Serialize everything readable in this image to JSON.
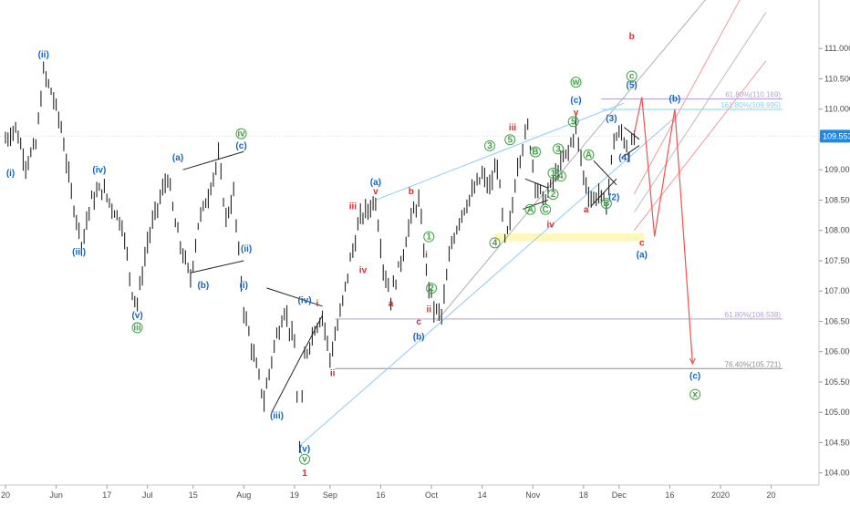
{
  "chart_data": {
    "type": "candlestick",
    "ylim": [
      103.8,
      111.8
    ],
    "price_ticks": [
      "111.000",
      "110.500",
      "110.000",
      "109.500",
      "109.000",
      "108.500",
      "108.000",
      "107.500",
      "107.000",
      "106.500",
      "106.000",
      "105.500",
      "105.000",
      "104.500",
      "104.000"
    ],
    "price_tick_values": [
      111.0,
      110.5,
      110.0,
      109.5,
      109.0,
      108.5,
      108.0,
      107.5,
      107.0,
      106.5,
      106.0,
      105.5,
      105.0,
      104.5,
      104.0
    ],
    "current_price": "109.553",
    "current_price_value": 109.553,
    "time_ticks": [
      "20",
      "Jun",
      "17",
      "Jul",
      "15",
      "Aug",
      "19",
      "Sep",
      "16",
      "Oct",
      "14",
      "Nov",
      "18",
      "Dec",
      "16",
      "2020",
      "20"
    ],
    "time_tick_index": [
      0,
      20,
      40,
      56,
      74,
      94,
      114,
      128,
      148,
      168,
      188,
      208,
      228,
      242,
      262,
      282,
      302
    ],
    "fib_levels": [
      {
        "label": "61.80%(110.169)",
        "value": 110.169,
        "color": "#b39ddb"
      },
      {
        "label": "161.80%(109.995)",
        "value": 109.995,
        "color": "#81d4fa"
      },
      {
        "label": "61.80%(106.538)",
        "value": 106.538,
        "color": "#b39ddb"
      },
      {
        "label": "76.40%(105.721)",
        "value": 105.721,
        "color": "#8e8e8e"
      }
    ],
    "price_path": [
      [
        0,
        109.5
      ],
      [
        4,
        109.7
      ],
      [
        8,
        109.1
      ],
      [
        12,
        109.4
      ],
      [
        15,
        110.6
      ],
      [
        18,
        110.3
      ],
      [
        22,
        109.7
      ],
      [
        26,
        108.6
      ],
      [
        30,
        107.8
      ],
      [
        34,
        108.5
      ],
      [
        38,
        108.7
      ],
      [
        42,
        108.4
      ],
      [
        46,
        108.1
      ],
      [
        50,
        107.0
      ],
      [
        52,
        106.8
      ],
      [
        56,
        107.8
      ],
      [
        60,
        108.4
      ],
      [
        64,
        108.9
      ],
      [
        67,
        108.1
      ],
      [
        70,
        107.6
      ],
      [
        73,
        107.2
      ],
      [
        76,
        108.1
      ],
      [
        80,
        108.6
      ],
      [
        84,
        109.2
      ],
      [
        87,
        108.2
      ],
      [
        90,
        108.6
      ],
      [
        92,
        107.6
      ],
      [
        94,
        106.7
      ],
      [
        98,
        105.9
      ],
      [
        102,
        105.2
      ],
      [
        106,
        106.1
      ],
      [
        110,
        106.7
      ],
      [
        114,
        106.1
      ],
      [
        116,
        104.4
      ],
      [
        118,
        105.9
      ],
      [
        122,
        106.4
      ],
      [
        125,
        106.6
      ],
      [
        128,
        105.9
      ],
      [
        132,
        106.6
      ],
      [
        136,
        107.5
      ],
      [
        140,
        108.2
      ],
      [
        144,
        108.4
      ],
      [
        146,
        108.5
      ],
      [
        149,
        107.4
      ],
      [
        152,
        106.9
      ],
      [
        156,
        107.5
      ],
      [
        160,
        108.2
      ],
      [
        163,
        108.5
      ],
      [
        166,
        107.3
      ],
      [
        169,
        106.7
      ],
      [
        172,
        106.6
      ],
      [
        176,
        107.8
      ],
      [
        180,
        108.3
      ],
      [
        184,
        108.6
      ],
      [
        188,
        108.9
      ],
      [
        191,
        108.7
      ],
      [
        194,
        109.1
      ],
      [
        197,
        107.8
      ],
      [
        199,
        108.1
      ],
      [
        202,
        109.1
      ],
      [
        206,
        109.7
      ],
      [
        209,
        108.8
      ],
      [
        212,
        108.5
      ],
      [
        215,
        108.7
      ],
      [
        219,
        109.1
      ],
      [
        222,
        109.3
      ],
      [
        225,
        109.7
      ],
      [
        228,
        108.9
      ],
      [
        231,
        108.5
      ],
      [
        234,
        108.6
      ],
      [
        237,
        108.4
      ],
      [
        240,
        109.5
      ],
      [
        243,
        109.6
      ],
      [
        246,
        109.3
      ],
      [
        248,
        109.5
      ]
    ],
    "triangles": [
      {
        "points": [
          [
            70,
            109.0
          ],
          [
            94,
            109.3
          ],
          [
            73,
            107.3
          ],
          [
            94,
            107.5
          ]
        ]
      },
      {
        "points": [
          [
            103,
            107.05
          ],
          [
            125,
            106.75
          ],
          [
            105,
            105.0
          ],
          [
            125,
            106.6
          ]
        ]
      },
      {
        "points": [
          [
            205,
            108.85
          ],
          [
            214,
            108.7
          ],
          [
            204,
            108.35
          ],
          [
            214,
            108.5
          ]
        ]
      },
      {
        "points": [
          [
            232,
            109.15
          ],
          [
            241,
            108.75
          ],
          [
            231,
            108.4
          ],
          [
            241,
            108.85
          ]
        ]
      },
      {
        "points": [
          [
            244,
            109.7
          ],
          [
            250,
            109.5
          ],
          [
            243,
            109.2
          ],
          [
            250,
            109.4
          ]
        ]
      }
    ],
    "channels": [
      {
        "from": [
          146,
          108.5
        ],
        "to": [
          244,
          110.1
        ],
        "color": "#90caf9"
      },
      {
        "from": [
          116,
          104.45
        ],
        "to": [
          265,
          109.9
        ],
        "color": "#90caf9"
      },
      {
        "from": [
          170,
          106.5
        ],
        "to": [
          290,
          112.5
        ],
        "color": "#b0b0b0"
      }
    ],
    "projection": [
      {
        "points": [
          [
            248,
            109.6
          ],
          [
            251,
            110.2
          ],
          [
            256,
            107.9
          ],
          [
            264,
            110.0
          ],
          [
            271,
            105.8
          ]
        ],
        "color": "#ef5350"
      }
    ],
    "wave_labels": [
      {
        "t": "(i)",
        "i": 2,
        "y": 108.9,
        "c": "#1565c0"
      },
      {
        "t": "(ii)",
        "i": 15,
        "y": 110.85,
        "c": "#1565c0"
      },
      {
        "t": "(iii)",
        "i": 29,
        "y": 107.6,
        "c": "#1565c0"
      },
      {
        "t": "(iv)",
        "i": 37,
        "y": 108.95,
        "c": "#1565c0"
      },
      {
        "t": "(v)",
        "i": 52,
        "y": 106.55,
        "c": "#1565c0"
      },
      {
        "t": "iii",
        "i": 52,
        "y": 106.35,
        "c": "#43a047",
        "circle": true
      },
      {
        "t": "(a)",
        "i": 68,
        "y": 109.15,
        "c": "#1565c0"
      },
      {
        "t": "(b)",
        "i": 78,
        "y": 107.05,
        "c": "#1565c0"
      },
      {
        "t": "iv",
        "i": 93,
        "y": 109.55,
        "c": "#43a047",
        "circle": true
      },
      {
        "t": "(c)",
        "i": 93,
        "y": 109.35,
        "c": "#1565c0"
      },
      {
        "t": "(ii)",
        "i": 95,
        "y": 107.65,
        "c": "#1565c0"
      },
      {
        "t": "(i)",
        "i": 94,
        "y": 107.05,
        "c": "#1565c0"
      },
      {
        "t": "(iii)",
        "i": 107,
        "y": 104.9,
        "c": "#1565c0"
      },
      {
        "t": "(iv)",
        "i": 118,
        "y": 106.8,
        "c": "#1565c0"
      },
      {
        "t": "(v)",
        "i": 118,
        "y": 104.35,
        "c": "#1565c0"
      },
      {
        "t": "v",
        "i": 118,
        "y": 104.18,
        "c": "#43a047",
        "circle": true
      },
      {
        "t": "1",
        "i": 118,
        "y": 103.95,
        "c": "#d32f2f"
      },
      {
        "t": "i",
        "i": 123,
        "y": 106.75,
        "c": "#d32f2f"
      },
      {
        "t": "ii",
        "i": 129,
        "y": 105.6,
        "c": "#d32f2f"
      },
      {
        "t": "iii",
        "i": 137,
        "y": 108.35,
        "c": "#d32f2f"
      },
      {
        "t": "iv",
        "i": 141,
        "y": 107.3,
        "c": "#d32f2f"
      },
      {
        "t": "v",
        "i": 146,
        "y": 108.6,
        "c": "#d32f2f"
      },
      {
        "t": "(a)",
        "i": 146,
        "y": 108.75,
        "c": "#1565c0"
      },
      {
        "t": "a",
        "i": 152,
        "y": 106.75,
        "c": "#d32f2f"
      },
      {
        "t": "b",
        "i": 160,
        "y": 108.6,
        "c": "#d32f2f"
      },
      {
        "t": "i",
        "i": 166,
        "y": 107.55,
        "c": "#d32f2f"
      },
      {
        "t": "c",
        "i": 163,
        "y": 106.45,
        "c": "#d32f2f"
      },
      {
        "t": "(b)",
        "i": 163,
        "y": 106.2,
        "c": "#1565c0"
      },
      {
        "t": "ii",
        "i": 167,
        "y": 106.65,
        "c": "#d32f2f"
      },
      {
        "t": "iii",
        "i": 200,
        "y": 109.65,
        "c": "#d32f2f"
      },
      {
        "t": "iv",
        "i": 215,
        "y": 108.05,
        "c": "#d32f2f"
      },
      {
        "t": "v",
        "i": 225,
        "y": 109.9,
        "c": "#d32f2f"
      },
      {
        "t": "(c)",
        "i": 225,
        "y": 110.1,
        "c": "#1565c0"
      },
      {
        "t": "w",
        "i": 225,
        "y": 110.4,
        "c": "#43a047",
        "circle": true
      },
      {
        "t": "a",
        "i": 229,
        "y": 108.3,
        "c": "#d32f2f"
      },
      {
        "t": "b",
        "i": 247,
        "y": 111.15,
        "c": "#d32f2f"
      },
      {
        "t": "c",
        "i": 247,
        "y": 110.5,
        "c": "#43a047",
        "circle": true
      },
      {
        "t": "(5)",
        "i": 247,
        "y": 110.35,
        "c": "#1565c0"
      },
      {
        "t": "(3)",
        "i": 239,
        "y": 109.8,
        "c": "#1565c0"
      },
      {
        "t": "(4)",
        "i": 244,
        "y": 109.15,
        "c": "#1565c0"
      },
      {
        "t": "(2)",
        "i": 240,
        "y": 108.5,
        "c": "#1565c0"
      },
      {
        "t": "(b)",
        "i": 264,
        "y": 110.12,
        "c": "#1565c0"
      },
      {
        "t": "c",
        "i": 251,
        "y": 107.75,
        "c": "#d32f2f"
      },
      {
        "t": "(a)",
        "i": 251,
        "y": 107.55,
        "c": "#1565c0"
      },
      {
        "t": "(c)",
        "i": 272,
        "y": 105.55,
        "c": "#1565c0"
      },
      {
        "t": "x",
        "i": 272,
        "y": 105.25,
        "c": "#43a047",
        "circle": true
      },
      {
        "t": "1",
        "i": 167,
        "y": 107.85,
        "c": "#43a047",
        "circle": true
      },
      {
        "t": "2",
        "i": 168,
        "y": 107.0,
        "c": "#43a047",
        "circle": true
      },
      {
        "t": "3",
        "i": 191,
        "y": 109.35,
        "c": "#43a047",
        "circle": true
      },
      {
        "t": "4",
        "i": 193,
        "y": 107.75,
        "c": "#43a047",
        "circle": true
      },
      {
        "t": "5",
        "i": 199,
        "y": 109.45,
        "c": "#43a047",
        "circle": true
      },
      {
        "t": "A",
        "i": 207,
        "y": 108.3,
        "c": "#43a047",
        "circle": true
      },
      {
        "t": "B",
        "i": 209,
        "y": 109.25,
        "c": "#43a047",
        "circle": true
      },
      {
        "t": "C",
        "i": 213,
        "y": 108.3,
        "c": "#43a047",
        "circle": true
      },
      {
        "t": "1",
        "i": 216,
        "y": 108.9,
        "c": "#43a047",
        "circle": true
      },
      {
        "t": "2",
        "i": 216,
        "y": 108.55,
        "c": "#43a047",
        "circle": true
      },
      {
        "t": "3",
        "i": 218,
        "y": 109.3,
        "c": "#43a047",
        "circle": true
      },
      {
        "t": "4",
        "i": 219,
        "y": 108.85,
        "c": "#43a047",
        "circle": true
      },
      {
        "t": "5",
        "i": 224,
        "y": 109.75,
        "c": "#43a047",
        "circle": true
      },
      {
        "t": "A",
        "i": 230,
        "y": 109.2,
        "c": "#43a047",
        "circle": true
      },
      {
        "t": "B",
        "i": 237,
        "y": 108.4,
        "c": "#43a047",
        "circle": true
      }
    ]
  }
}
